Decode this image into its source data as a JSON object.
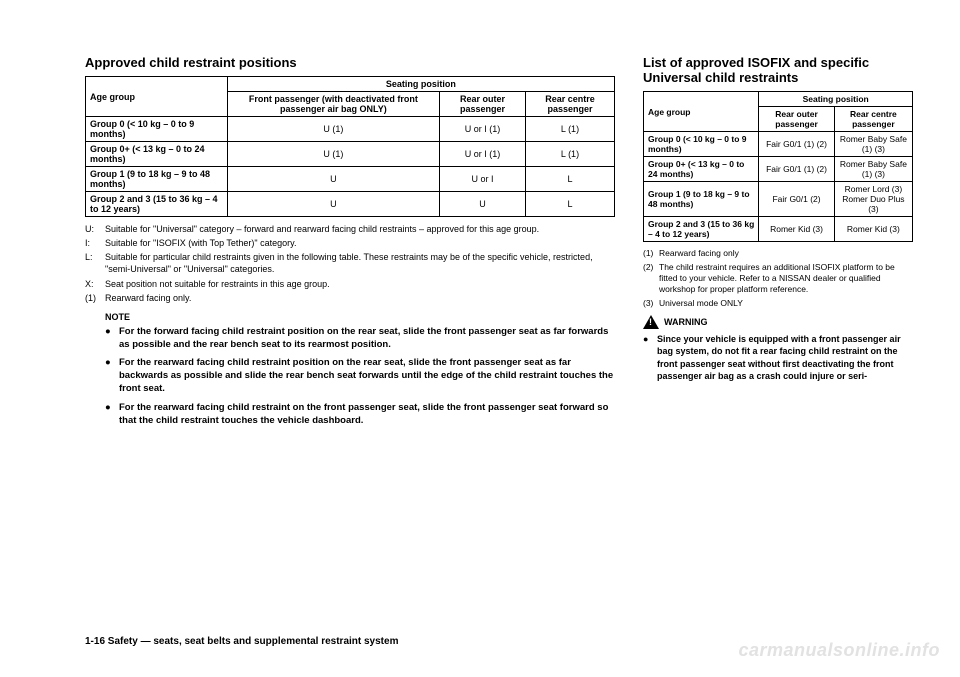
{
  "left": {
    "heading": "Approved child restraint positions",
    "table": {
      "header_age": "Age group",
      "header_seating": "Seating position",
      "header_front": "Front passenger (with deactivated front passenger air bag ONLY)",
      "header_rear_outer": "Rear outer passenger",
      "header_rear_centre": "Rear centre passenger",
      "rows": [
        {
          "age": "Group 0 (< 10 kg – 0 to 9 months)",
          "front": "U (1)",
          "rear_outer": "U or I (1)",
          "rear_centre": "L (1)"
        },
        {
          "age": "Group 0+ (< 13 kg – 0 to 24 months)",
          "front": "U (1)",
          "rear_outer": "U or I (1)",
          "rear_centre": "L (1)"
        },
        {
          "age": "Group 1 (9 to 18 kg – 9 to 48 months)",
          "front": "U",
          "rear_outer": "U or I",
          "rear_centre": "L"
        },
        {
          "age": "Group 2 and 3 (15 to 36 kg – 4 to 12 years)",
          "front": "U",
          "rear_outer": "U",
          "rear_centre": "L"
        }
      ]
    },
    "legend": [
      {
        "k": "U:",
        "v": "Suitable for \"Universal\" category – forward and rearward facing child restraints – approved for this age group."
      },
      {
        "k": "I:",
        "v": "Suitable for \"ISOFIX (with Top Tether)\" category."
      },
      {
        "k": "L:",
        "v": "Suitable for particular child restraints given in the following table. These restraints may be of the specific vehicle, restricted, \"semi-Universal\" or \"Universal\" categories."
      },
      {
        "k": "X:",
        "v": "Seat position not suitable for restraints in this age group."
      },
      {
        "k": "(1)",
        "v": "Rearward facing only."
      }
    ],
    "note_label": "NOTE",
    "notes": [
      "For the forward facing child restraint position on the rear seat, slide the front passenger seat as far forwards as possible and the rear bench seat to its rearmost position.",
      "For the rearward facing child restraint position on the rear seat, slide the front passenger seat as far backwards as possible and slide the rear bench seat forwards until the edge of the child restraint touches the front seat.",
      "For the rearward facing child restraint on the front passenger seat, slide the front passenger seat forward so that the child restraint touches the vehicle dashboard."
    ]
  },
  "right": {
    "heading": "List of approved ISOFIX and specific Universal child restraints",
    "table": {
      "header_age": "Age group",
      "header_seating": "Seating position",
      "header_rear_outer": "Rear outer passenger",
      "header_rear_centre": "Rear centre passenger",
      "rows": [
        {
          "age": "Group 0 (< 10 kg – 0 to 9 months)",
          "outer": "Fair G0/1 (1) (2)",
          "centre": "Romer Baby Safe (1) (3)"
        },
        {
          "age": "Group 0+ (< 13 kg – 0 to 24 months)",
          "outer": "Fair G0/1 (1) (2)",
          "centre": "Romer Baby Safe (1) (3)"
        },
        {
          "age": "Group 1 (9 to 18 kg – 9 to 48 months)",
          "outer": "Fair G0/1 (2)",
          "centre": "Romer Lord (3)\nRomer Duo Plus (3)"
        },
        {
          "age": "Group 2 and 3 (15 to 36 kg – 4 to 12 years)",
          "outer": "Romer Kid (3)",
          "centre": "Romer Kid (3)"
        }
      ]
    },
    "sups": [
      {
        "k": "(1)",
        "v": "Rearward facing only"
      },
      {
        "k": "(2)",
        "v": "The child restraint requires an additional ISOFIX platform to be fitted to your vehicle. Refer to a NISSAN dealer or qualified workshop for proper platform reference."
      },
      {
        "k": "(3)",
        "v": "Universal mode ONLY"
      }
    ],
    "warning_label": "WARNING",
    "warning_items": [
      "Since your vehicle is equipped with a front passenger air bag system, do not fit a rear facing child restraint on the front passenger seat without first deactivating the front passenger air bag as a crash could injure or seri-"
    ]
  },
  "footer": "1-16    Safety — seats, seat belts and supplemental restraint system",
  "watermark": "carmanualsonline.info"
}
